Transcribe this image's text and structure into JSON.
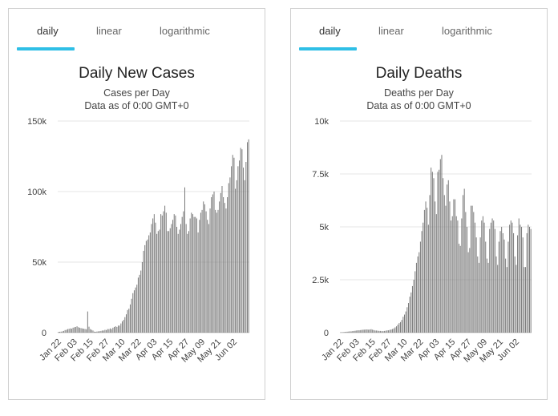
{
  "panels": [
    {
      "tabs": [
        "daily",
        "linear",
        "logarithmic"
      ],
      "active_tab": "daily",
      "title": "Daily New Cases",
      "subtitle": "Cases per Day",
      "note": "Data as of 0:00 GMT+0"
    },
    {
      "tabs": [
        "daily",
        "linear",
        "logarithmic"
      ],
      "active_tab": "daily",
      "title": "Daily Deaths",
      "subtitle": "Deaths per Day",
      "note": "Data as of 0:00 GMT+0"
    }
  ],
  "colors": {
    "accent": "#2fbfe6",
    "bar": "#7a7a7a",
    "grid": "#e6e6e6"
  },
  "chart_data": [
    {
      "type": "bar",
      "title": "Daily New Cases",
      "xlabel": "",
      "ylabel": "",
      "ylim": [
        0,
        150000
      ],
      "yticks": [
        0,
        50000,
        100000,
        150000
      ],
      "ytick_labels": [
        "0",
        "50k",
        "100k",
        "150k"
      ],
      "x_tick_labels": [
        "Jan 22",
        "Feb 03",
        "Feb 15",
        "Feb 27",
        "Mar 10",
        "Mar 22",
        "Apr 03",
        "Apr 15",
        "Apr 27",
        "May 09",
        "May 21",
        "Jun 02"
      ],
      "x_start": "Jan 22",
      "grid": true,
      "values": [
        500,
        600,
        700,
        900,
        1200,
        1800,
        2000,
        2500,
        2700,
        3000,
        2800,
        3500,
        3800,
        4000,
        4500,
        3800,
        3500,
        3200,
        3000,
        2800,
        2600,
        2400,
        15000,
        4200,
        2500,
        2000,
        1500,
        700,
        600,
        800,
        900,
        1000,
        1200,
        1500,
        1500,
        2000,
        1800,
        2500,
        2500,
        3000,
        2500,
        3500,
        4000,
        4500,
        4000,
        5000,
        5000,
        6500,
        8000,
        9000,
        11000,
        13000,
        16000,
        17000,
        20000,
        24000,
        28000,
        30000,
        32000,
        34000,
        39000,
        41000,
        44000,
        50000,
        58000,
        62000,
        65000,
        66000,
        69000,
        71000,
        77000,
        81000,
        84000,
        78000,
        70000,
        72000,
        73000,
        84000,
        83000,
        86000,
        90000,
        85000,
        72000,
        72000,
        74000,
        77000,
        80000,
        84000,
        83000,
        75000,
        70000,
        73000,
        77000,
        82000,
        86000,
        103000,
        77000,
        70000,
        72000,
        81000,
        85000,
        84000,
        82000,
        82000,
        81000,
        71000,
        80000,
        85000,
        87000,
        93000,
        91000,
        86000,
        80000,
        77000,
        88000,
        96000,
        98000,
        100000,
        87000,
        85000,
        87000,
        93000,
        99000,
        104000,
        96000,
        92000,
        88000,
        96000,
        106000,
        110000,
        118000,
        126000,
        124000,
        102000,
        108000,
        118000,
        122000,
        131000,
        130000,
        117000,
        108000,
        121000,
        135000,
        137000
      ]
    },
    {
      "type": "bar",
      "title": "Daily Deaths",
      "xlabel": "",
      "ylabel": "",
      "ylim": [
        0,
        10000
      ],
      "yticks": [
        0,
        2500,
        5000,
        7500,
        10000
      ],
      "ytick_labels": [
        "0",
        "2.5k",
        "5k",
        "7.5k",
        "10k"
      ],
      "x_tick_labels": [
        "Jan 22",
        "Feb 03",
        "Feb 15",
        "Feb 27",
        "Mar 10",
        "Mar 22",
        "Apr 03",
        "Apr 15",
        "Apr 27",
        "May 09",
        "May 21",
        "Jun 02"
      ],
      "x_start": "Jan 22",
      "grid": true,
      "values": [
        15,
        20,
        25,
        30,
        40,
        45,
        50,
        60,
        60,
        70,
        80,
        90,
        100,
        110,
        110,
        120,
        130,
        140,
        140,
        150,
        150,
        140,
        150,
        160,
        140,
        120,
        100,
        100,
        90,
        80,
        80,
        70,
        70,
        80,
        90,
        110,
        110,
        130,
        150,
        170,
        200,
        250,
        300,
        380,
        450,
        500,
        600,
        750,
        850,
        1000,
        1200,
        1400,
        1700,
        1900,
        2200,
        2500,
        2900,
        3300,
        3600,
        3800,
        4300,
        4800,
        5200,
        5800,
        6200,
        5900,
        5100,
        6500,
        7800,
        7600,
        7300,
        6200,
        5600,
        7600,
        7700,
        8200,
        8400,
        7300,
        6500,
        6000,
        7000,
        7200,
        6200,
        5300,
        5500,
        6300,
        6300,
        5500,
        5300,
        4200,
        4100,
        5400,
        6500,
        6800,
        5700,
        5000,
        3800,
        4000,
        6000,
        6000,
        5700,
        5200,
        4500,
        3600,
        3300,
        4500,
        5300,
        5500,
        5200,
        4300,
        3500,
        3300,
        4900,
        5200,
        5400,
        5300,
        4900,
        3600,
        3200,
        4300,
        4800,
        5000,
        4700,
        4400,
        3500,
        3100,
        4300,
        5100,
        5300,
        5200,
        4700,
        3600,
        3200,
        4600,
        5400,
        5100,
        5000,
        4500,
        3100,
        3100,
        4700,
        5100,
        5000,
        4900
      ]
    }
  ]
}
